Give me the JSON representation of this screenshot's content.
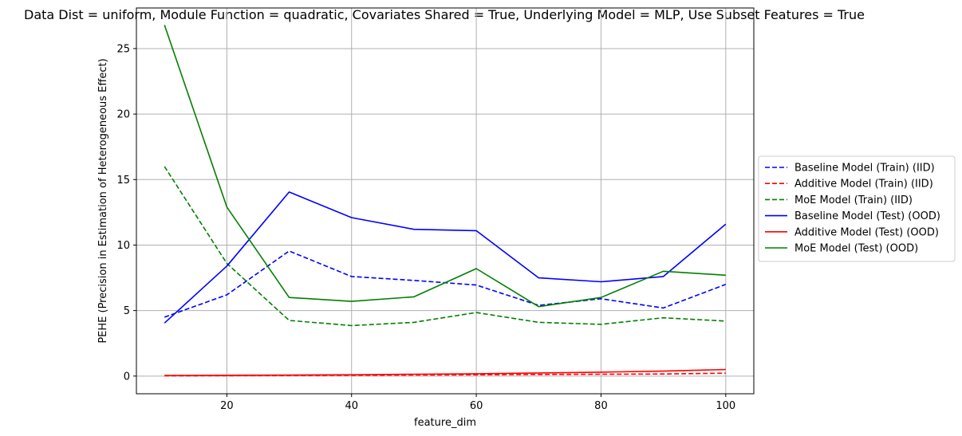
{
  "chart_data": {
    "type": "line",
    "title": "Data Dist = uniform, Module Function = quadratic, Covariates Shared = True, Underlying Model = MLP, Use Subset Features = True",
    "xlabel": "feature_dim",
    "ylabel": "PEHE (Precision in Estimation of Heterogeneous Effect)",
    "xlim": [
      5.5,
      104.5
    ],
    "ylim": [
      -1.35,
      28.1
    ],
    "xticks": [
      20,
      40,
      60,
      80,
      100
    ],
    "yticks": [
      0,
      5,
      10,
      15,
      20,
      25
    ],
    "grid": true,
    "legend_position": "center-right-outside",
    "x": [
      10,
      20,
      30,
      40,
      50,
      60,
      70,
      80,
      90,
      100
    ],
    "series": [
      {
        "name": "Baseline Model (Train) (IID)",
        "color": "#0000ff",
        "dash": "dashed",
        "values": [
          4.5,
          6.2,
          9.55,
          7.6,
          7.3,
          6.95,
          5.4,
          5.9,
          5.2,
          7.0
        ]
      },
      {
        "name": "Additive Model (Train) (IID)",
        "color": "#ff0000",
        "dash": "dashed",
        "values": [
          0.02,
          0.03,
          0.05,
          0.06,
          0.08,
          0.1,
          0.12,
          0.14,
          0.16,
          0.22
        ]
      },
      {
        "name": "MoE Model (Train) (IID)",
        "color": "#008000",
        "dash": "dashed",
        "values": [
          16.0,
          8.6,
          4.25,
          3.85,
          4.1,
          4.85,
          4.1,
          3.95,
          4.45,
          4.2
        ]
      },
      {
        "name": "Baseline Model (Test) (OOD)",
        "color": "#0000ff",
        "dash": "solid",
        "values": [
          4.05,
          8.4,
          14.05,
          12.1,
          11.2,
          11.1,
          7.5,
          7.2,
          7.6,
          11.6
        ]
      },
      {
        "name": "Additive Model (Test) (OOD)",
        "color": "#ff0000",
        "dash": "solid",
        "values": [
          0.05,
          0.06,
          0.08,
          0.1,
          0.14,
          0.18,
          0.24,
          0.3,
          0.38,
          0.5
        ]
      },
      {
        "name": "MoE Model (Test) (OOD)",
        "color": "#008000",
        "dash": "solid",
        "values": [
          26.8,
          12.9,
          6.0,
          5.7,
          6.05,
          8.2,
          5.3,
          6.0,
          8.0,
          7.7
        ]
      }
    ]
  }
}
